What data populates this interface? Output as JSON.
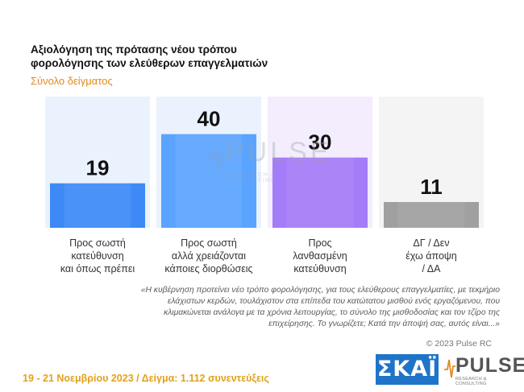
{
  "header": {
    "title": "Αξιολόγηση της πρότασης νέου τρόπου φορολόγησης των ελεύθερων επαγγελματιών",
    "subtitle": "Σύνολο δείγματος"
  },
  "chart_data": {
    "type": "bar",
    "categories": [
      "Προς σωστή\nκατεύθυνση\nκαι όπως πρέπει",
      "Προς σωστή\nαλλά χρειάζονται\nκάποιες διορθώσεις",
      "Προς\nλανθασμένη\nκατεύθυνση",
      "ΔΓ / Δεν\nέχω άποψη\n/ ΔΑ"
    ],
    "values": [
      19,
      40,
      30,
      11
    ],
    "ylim": [
      0,
      55
    ],
    "grid": false,
    "legend": "none",
    "colors": [
      "#3d8af7",
      "#5aa4ff",
      "#a57cf7",
      "#a0a0a0"
    ],
    "bg_colors": [
      "#eaf2fd",
      "#eaf2fd",
      "#f3edfd",
      "#f4f4f4"
    ]
  },
  "question": "«Η κυβέρνηση προτείνει νέο τρόπο φορολόγησης, για τους ελεύθερους επαγγελματίες, με τεκμήριο ελάχιστων κερδών, τουλάχιστον στα επίπεδα του κατώτατου μισθού ενός εργαζόμενου, που κλιμακώνεται ανάλογα με τα χρόνια λειτουργίας, το σύνολο της μισθοδοσίας και τον τζίρο της επιχείρησης. Το γνωρίζετε; Κατά την άποψή σας, αυτός είναι...»",
  "copyright": "© 2023 Pulse RC",
  "footer": {
    "date_sample": "19 - 21 Νοεμβρίου 2023 / Δείγμα: 1.112 συνεντεύξεις"
  },
  "logos": {
    "skai": "ΣΚΑΪ",
    "pulse": "PULSE",
    "pulse_sub": "RESEARCH & CONSULTING"
  },
  "watermark": {
    "text": "PULSE",
    "sub": "RESEARCH & CONSULTING"
  }
}
